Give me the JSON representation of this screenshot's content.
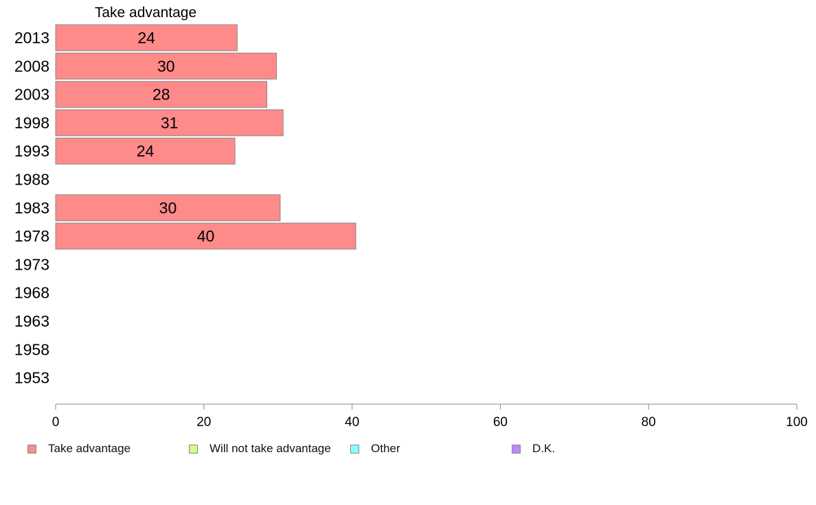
{
  "chart_data": {
    "type": "bar",
    "orientation": "horizontal",
    "title": "Take advantage",
    "categories": [
      "2013",
      "2008",
      "2003",
      "1998",
      "1993",
      "1988",
      "1983",
      "1978",
      "1973",
      "1968",
      "1963",
      "1958",
      "1953"
    ],
    "series": [
      {
        "name": "Take advantage",
        "color": "#ff8a8a",
        "values": [
          24.5,
          29.8,
          28.5,
          30.7,
          24.2,
          null,
          30.3,
          40.5,
          null,
          null,
          null,
          null,
          null
        ],
        "data_labels": [
          "24",
          "30",
          "28",
          "31",
          "24",
          "",
          "30",
          "40",
          "",
          "",
          "",
          "",
          ""
        ]
      }
    ],
    "xlim": [
      0,
      100
    ],
    "xticks": [
      0,
      20,
      40,
      60,
      80,
      100
    ],
    "grid": false,
    "legend": {
      "position": "bottom",
      "items": [
        {
          "label": "Take advantage",
          "color": "#ff8a8a"
        },
        {
          "label": "Will not take advantage",
          "color": "#ccff88"
        },
        {
          "label": "Other",
          "color": "#88ffff"
        },
        {
          "label": "D.K.",
          "color": "#bb88ff"
        }
      ]
    }
  }
}
